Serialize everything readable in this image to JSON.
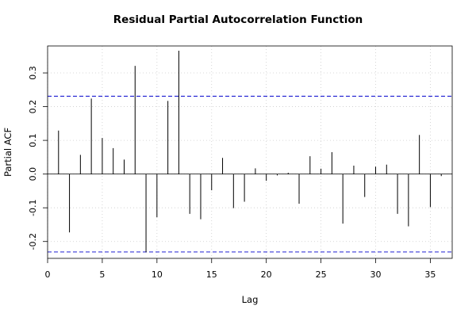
{
  "chart_data": {
    "type": "bar",
    "title": "Residual Partial Autocorrelation Function",
    "xlabel": "Lag",
    "ylabel": "Partial ACF",
    "xlim": [
      0,
      37
    ],
    "ylim": [
      -0.25,
      0.38
    ],
    "x_ticks": [
      0,
      5,
      10,
      15,
      20,
      25,
      30,
      35
    ],
    "x_tick_labels": [
      "0",
      "5",
      "10",
      "15",
      "20",
      "25",
      "30",
      "35"
    ],
    "y_ticks": [
      -0.2,
      -0.1,
      0.0,
      0.1,
      0.2,
      0.3
    ],
    "y_tick_labels": [
      "-0.2",
      "-0.1",
      "0.0",
      "0.1",
      "0.2",
      "0.3"
    ],
    "grid": true,
    "confidence_bounds": [
      0.231,
      -0.231
    ],
    "colors": {
      "bars": "#000000",
      "bounds": "#0000cc",
      "grid": "#cccccc",
      "zero_line": "#000000"
    },
    "series": [
      {
        "x": [
          1,
          2,
          3,
          4,
          5,
          6,
          7,
          8,
          9,
          10,
          11,
          12,
          13,
          14,
          15,
          16,
          17,
          18,
          19,
          20,
          21,
          22,
          23,
          24,
          25,
          26,
          27,
          28,
          29,
          30,
          31,
          32,
          33,
          34,
          35,
          36
        ],
        "values": [
          0.129,
          -0.173,
          0.057,
          0.224,
          0.107,
          0.077,
          0.043,
          0.321,
          -0.232,
          -0.128,
          0.217,
          0.366,
          -0.118,
          -0.134,
          -0.048,
          0.048,
          -0.101,
          -0.082,
          0.017,
          -0.02,
          -0.004,
          0.004,
          -0.088,
          0.053,
          0.016,
          0.065,
          -0.147,
          0.025,
          -0.068,
          0.022,
          0.028,
          -0.118,
          -0.155,
          0.116,
          -0.098,
          -0.006
        ]
      }
    ]
  }
}
